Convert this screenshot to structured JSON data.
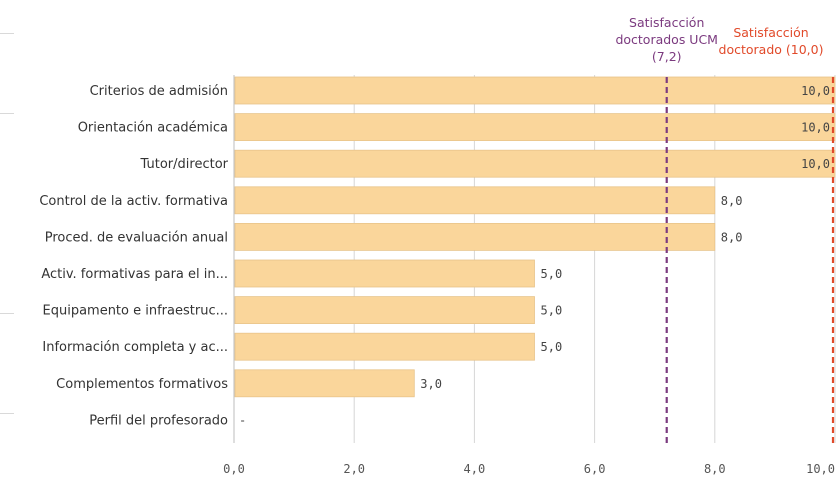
{
  "chart_data": {
    "type": "bar",
    "orientation": "horizontal",
    "categories": [
      "Criterios de admisión",
      "Orientación académica",
      "Tutor/director",
      "Control de la activ. formativa",
      "Proced. de evaluación anual",
      "Activ. formativas para el in...",
      "Equipamento e infraestruc...",
      "Información completa y ac...",
      "Complementos formativos",
      "Perfil del profesorado"
    ],
    "values": [
      10.0,
      10.0,
      10.0,
      8.0,
      8.0,
      5.0,
      5.0,
      5.0,
      3.0,
      null
    ],
    "value_labels": [
      "10,0",
      "10,0",
      "10,0",
      "8,0",
      "8,0",
      "5,0",
      "5,0",
      "5,0",
      "3,0",
      "-"
    ],
    "xlim": [
      0,
      10
    ],
    "xticks": [
      0,
      2,
      4,
      6,
      8,
      10
    ],
    "xtick_labels": [
      "0,0",
      "2,0",
      "4,0",
      "6,0",
      "8,0",
      "10,0"
    ],
    "grid": true,
    "bar_color": "#fad69b",
    "bar_edge_color": "#e8c48a",
    "reference_lines": [
      {
        "value": 7.2,
        "label_lines": [
          "Satisfacción",
          "doctorados UCM",
          "(7,2)"
        ],
        "color": "#7b3a7f",
        "style": "dashed"
      },
      {
        "value": 10.0,
        "label_lines": [
          "Satisfacción",
          "doctorado (10,0)"
        ],
        "color": "#e14a2a",
        "style": "dashed"
      }
    ]
  }
}
